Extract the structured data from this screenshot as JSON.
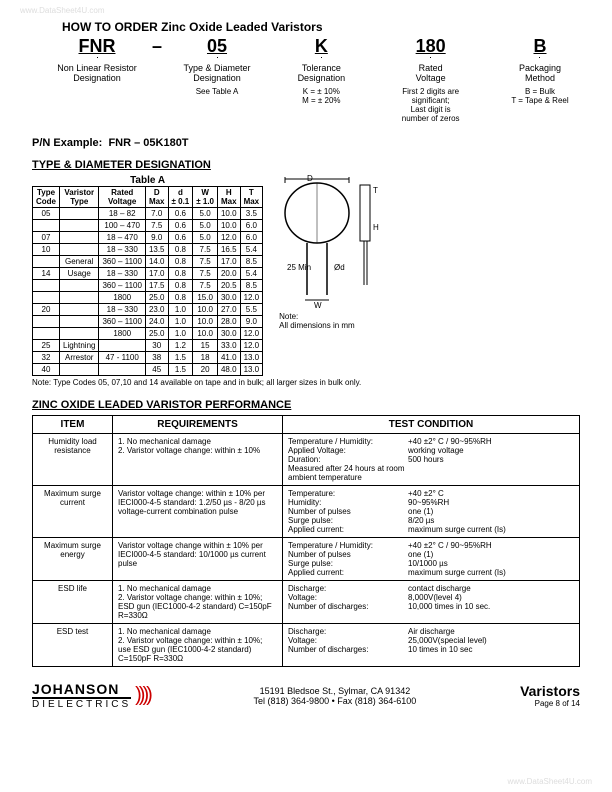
{
  "watermark": "www.DataSheet4U.com",
  "title": "HOW TO ORDER Zinc Oxide Leaded Varistors",
  "ordering": {
    "cols": [
      {
        "code": "FNR",
        "label": "Non Linear Resistor\nDesignation",
        "note": ""
      },
      {
        "code": "05",
        "label": "Type & Diameter\nDesignation",
        "note": "See Table A"
      },
      {
        "code": "K",
        "label": "Tolerance\nDesignation",
        "note": "K = ± 10%\nM = ± 20%"
      },
      {
        "code": "180",
        "label": "Rated\nVoltage",
        "note": "First 2 digits are\nsignificant;\nLast digit is\nnumber of zeros"
      },
      {
        "code": "B",
        "label": "Packaging\nMethod",
        "note": "B = Bulk\nT = Tape & Reel"
      }
    ]
  },
  "pn_example_label": "P/N Example:",
  "pn_example_value": "FNR – 05K180T",
  "tableA": {
    "heading": "TYPE & DIAMETER DESIGNATION",
    "caption": "Table A",
    "headers": [
      "Type\nCode",
      "Varistor\nType",
      "Rated\nVoltage",
      "D\nMax",
      "d\n± 0.1",
      "W\n± 1.0",
      "H\nMax",
      "T\nMax"
    ],
    "rows": [
      [
        "05",
        "",
        "18 – 82",
        "7.0",
        "0.6",
        "5.0",
        "10.0",
        "3.5"
      ],
      [
        "",
        "",
        "100 – 470",
        "7.5",
        "0.6",
        "5.0",
        "10.0",
        "6.0"
      ],
      [
        "07",
        "",
        "18 – 470",
        "9.0",
        "0.6",
        "5.0",
        "12.0",
        "6.0"
      ],
      [
        "10",
        "",
        "18 – 330",
        "13.5",
        "0.8",
        "7.5",
        "16.5",
        "5.4"
      ],
      [
        "",
        "General",
        "360 – 1100",
        "14.0",
        "0.8",
        "7.5",
        "17.0",
        "8.5"
      ],
      [
        "14",
        "Usage",
        "18 – 330",
        "17.0",
        "0.8",
        "7.5",
        "20.0",
        "5.4"
      ],
      [
        "",
        "",
        "360 – 1100",
        "17.5",
        "0.8",
        "7.5",
        "20.5",
        "8.5"
      ],
      [
        "",
        "",
        "1800",
        "25.0",
        "0.8",
        "15.0",
        "30.0",
        "12.0"
      ],
      [
        "20",
        "",
        "18 – 330",
        "23.0",
        "1.0",
        "10.0",
        "27.0",
        "5.5"
      ],
      [
        "",
        "",
        "360 – 1100",
        "24.0",
        "1.0",
        "10.0",
        "28.0",
        "9.0"
      ],
      [
        "",
        "",
        "1800",
        "25.0",
        "1.0",
        "10.0",
        "30.0",
        "12.0"
      ],
      [
        "25",
        "Lightning",
        "",
        "30",
        "1.2",
        "15",
        "33.0",
        "12.0"
      ],
      [
        "32",
        "Arrestor",
        "47 - 1100",
        "38",
        "1.5",
        "18",
        "41.0",
        "13.0"
      ],
      [
        "40",
        "",
        "",
        "45",
        "1.5",
        "20",
        "48.0",
        "13.0"
      ]
    ],
    "diagram_note": "Note:\nAll dimensions in mm",
    "footnote": "Note:   Type Codes 05, 07,10 and 14 available on tape and in bulk; all larger sizes in bulk only."
  },
  "perf": {
    "heading": "ZINC OXIDE LEADED VARISTOR PERFORMANCE",
    "headers": [
      "ITEM",
      "REQUIREMENTS",
      "TEST CONDITION"
    ],
    "rows": [
      {
        "item": "Humidity load\nresistance",
        "req": "1. No mechanical damage\n2. Varistor voltage change: within ± 10%",
        "tc": [
          [
            "Temperature / Humidity:",
            "+40 ±2° C / 90~95%RH"
          ],
          [
            "Applied Voltage:",
            "working voltage"
          ],
          [
            "Duration:",
            "500 hours"
          ],
          [
            "Measured after 24 hours at room ambient temperature",
            ""
          ]
        ]
      },
      {
        "item": "Maximum surge\ncurrent",
        "req": "Varistor voltage change: within ± 10% per IECI000-4-5 standard: 1.2/50 µs - 8/20 µs voltage-current combination pulse",
        "tc": [
          [
            "Temperature:",
            "+40 ±2° C"
          ],
          [
            "Humidity:",
            "90~95%RH"
          ],
          [
            "Number of pulses",
            "one (1)"
          ],
          [
            "Surge pulse:",
            "8/20 µs"
          ],
          [
            "Applied current:",
            "maximum surge current (Is)"
          ]
        ]
      },
      {
        "item": "Maximum surge\nenergy",
        "req": "Varistor voltage change within ± 10% per IECI000-4-5 standard: 10/1000 µs current pulse",
        "tc": [
          [
            "Temperature / Humidity:",
            "+40 ±2° C / 90~95%RH"
          ],
          [
            "Number of pulses",
            "one (1)"
          ],
          [
            "Surge pulse:",
            "10/1000 µs"
          ],
          [
            "Applied current:",
            "maximum surge current (Is)"
          ]
        ]
      },
      {
        "item": "ESD life",
        "req": "1. No mechanical damage\n2. Varistor voltage change: within ± 10%; ESD gun (IEC1000-4-2 standard) C=150pF R=330Ω",
        "tc": [
          [
            "Discharge:",
            "contact discharge"
          ],
          [
            "Voltage:",
            "8,000V(level 4)"
          ],
          [
            "Number of discharges:",
            "10,000 times in 10 sec."
          ]
        ]
      },
      {
        "item": "ESD test",
        "req": "1. No mechanical damage\n2. Varistor voltage change: within ± 10%; use ESD gun (IEC1000-4-2 standard) C=150pF R=330Ω",
        "tc": [
          [
            "Discharge:",
            "Air discharge"
          ],
          [
            "Voltage:",
            "25,000V(special level)"
          ],
          [
            "Number of discharges:",
            "10 times in 10 sec"
          ]
        ]
      }
    ]
  },
  "footer": {
    "company": "JOHANSON",
    "division": "DIELECTRICS",
    "address": "15191 Bledsoe St., Sylmar, CA 91342",
    "contact": "Tel (818) 364-9800 • Fax (818) 364-6100",
    "product": "Varistors",
    "page": "Page 8 of  14"
  }
}
